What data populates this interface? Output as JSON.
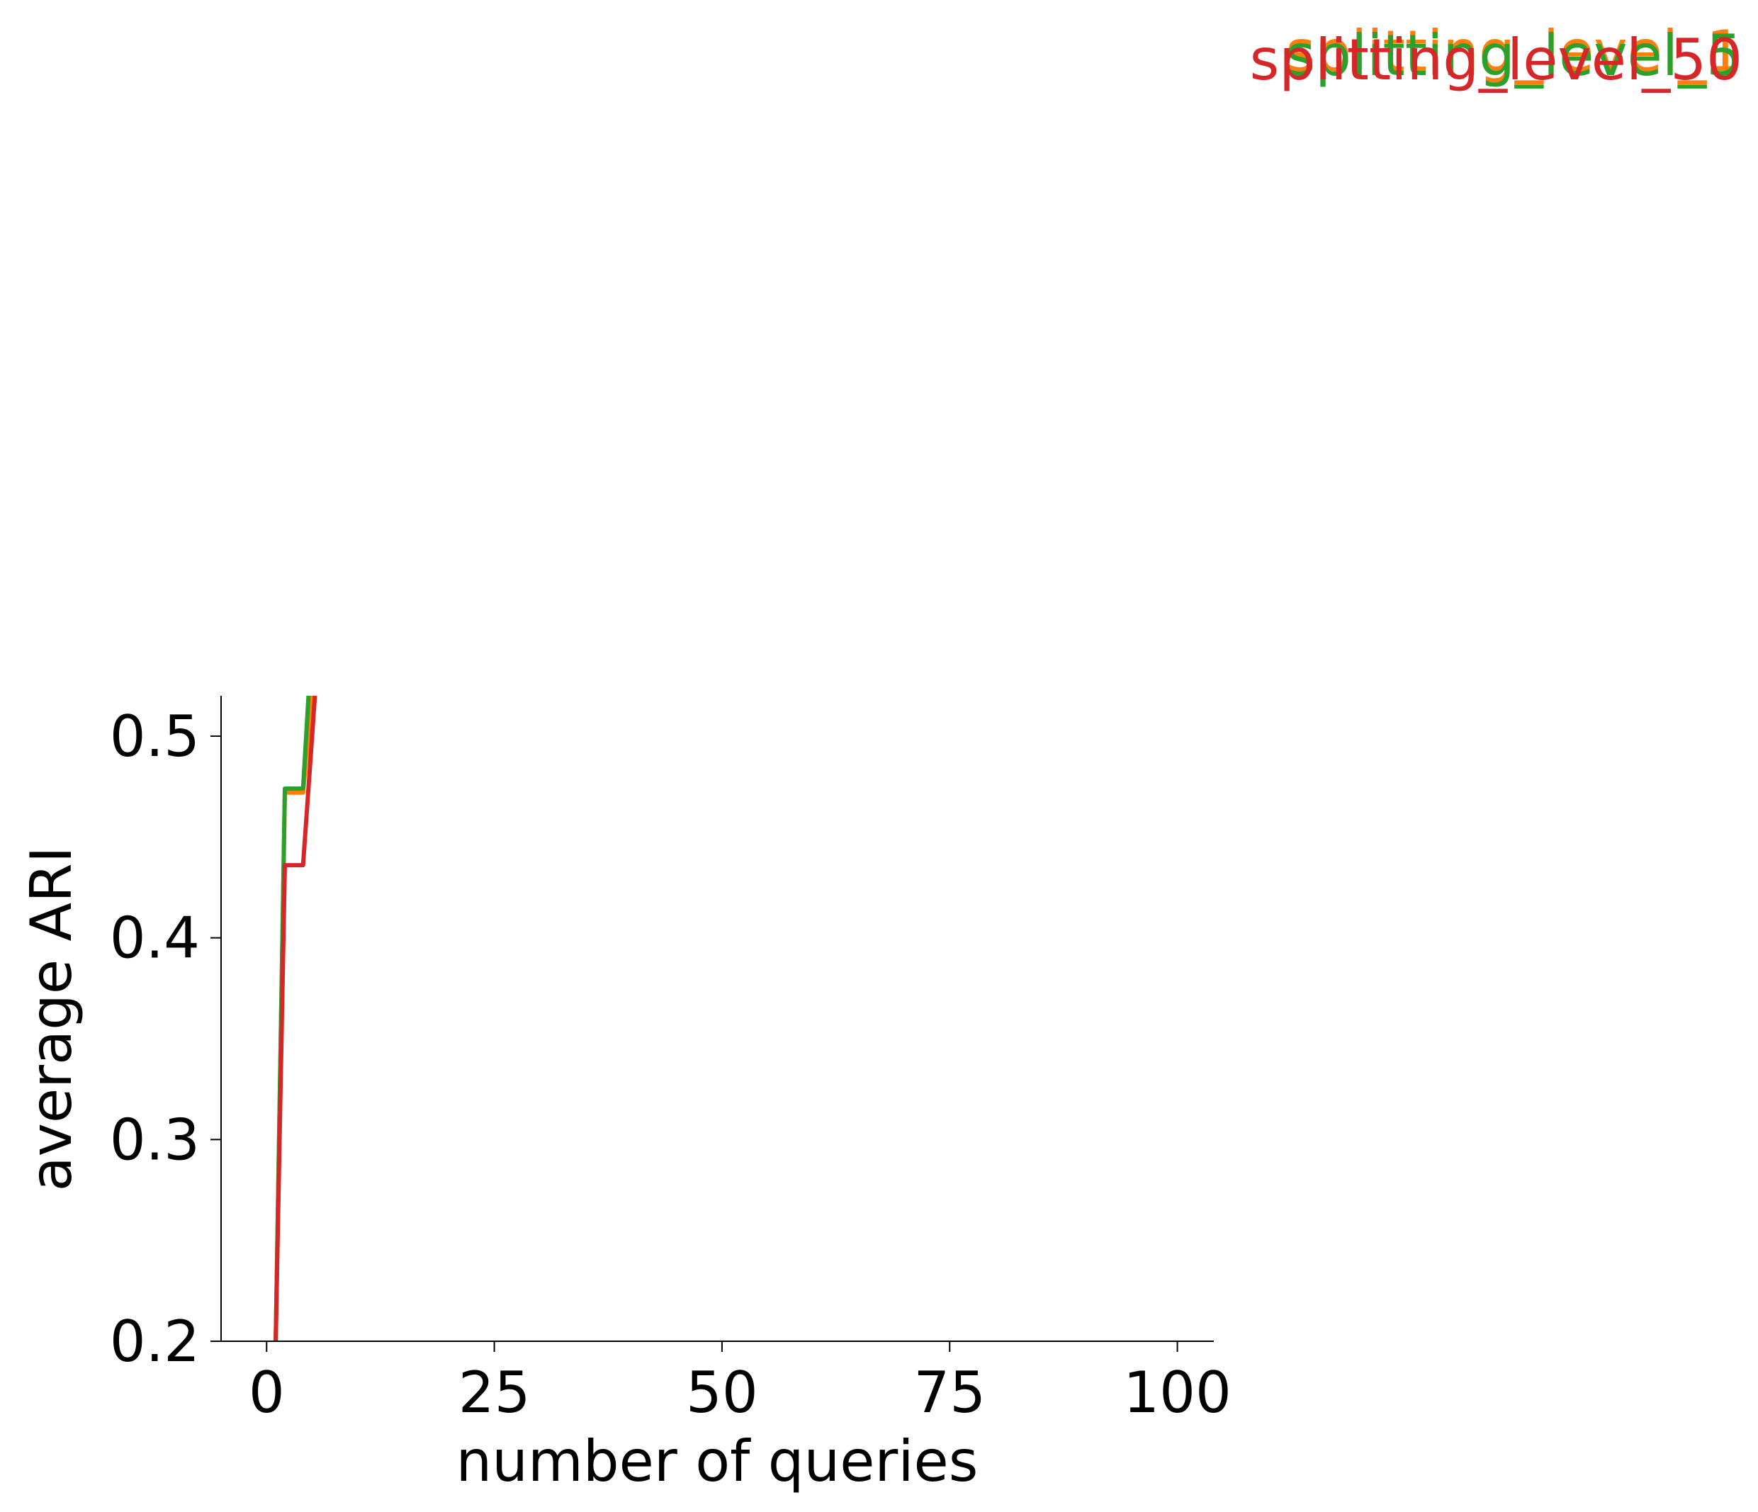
{
  "chart_data": {
    "type": "line",
    "title": "",
    "xlabel": "number of queries",
    "ylabel": "average ARI",
    "xlim": [
      -5,
      104
    ],
    "ylim": [
      0.2,
      0.52
    ],
    "x_ticks": [
      0,
      25,
      50,
      75,
      100
    ],
    "y_ticks": [
      0.2,
      0.3,
      0.4,
      0.5
    ],
    "x_tick_labels": [
      "0",
      "25",
      "50",
      "75",
      "100"
    ],
    "y_tick_labels": [
      "0.2",
      "0.3",
      "0.4",
      "0.5"
    ],
    "grid": false,
    "legend_placement": "top-right",
    "series": [
      {
        "name": "splitting_level_1",
        "color": "#ff7f0e",
        "x": [
          1,
          2,
          4,
          5
        ],
        "y": [
          0.2,
          0.472,
          0.472,
          0.52
        ]
      },
      {
        "name": "splitting_level_5",
        "color": "#2ca02c",
        "x": [
          1,
          2,
          4,
          4.6
        ],
        "y": [
          0.2,
          0.474,
          0.474,
          0.52
        ]
      },
      {
        "name": "splitting_level_50",
        "color": "#d62728",
        "x": [
          1,
          2,
          4,
          5,
          5.3
        ],
        "y": [
          0.2,
          0.436,
          0.436,
          0.5,
          0.52
        ]
      }
    ]
  }
}
